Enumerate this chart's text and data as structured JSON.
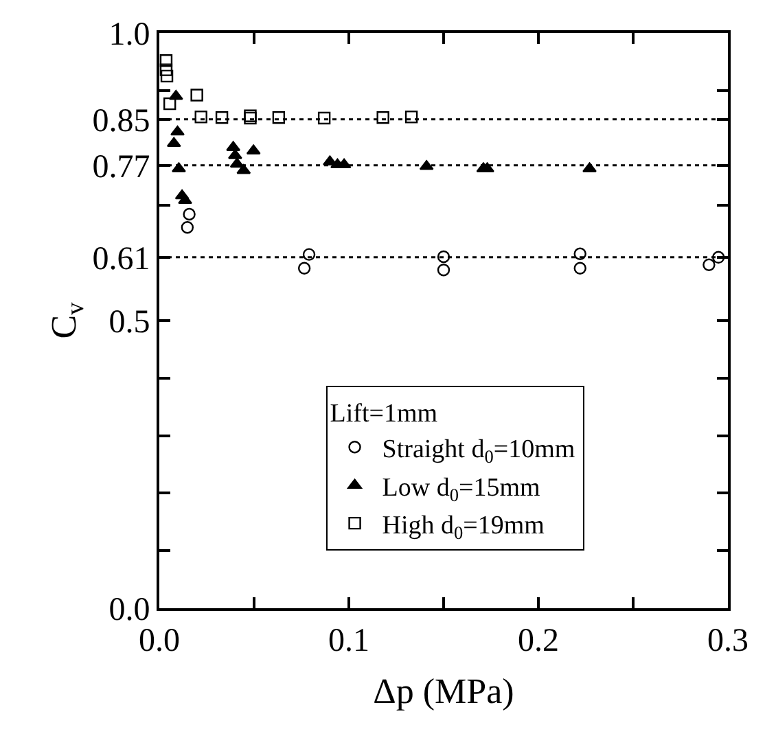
{
  "chart_data": {
    "type": "scatter",
    "xlabel": "Δp (MPa)",
    "ylabel": "C$_{v}$",
    "legend_title": "Lift=1mm",
    "legend": "bottom",
    "grid": false,
    "xlim": [
      0,
      0.3
    ],
    "xticks": [
      {
        "value": 0,
        "label": "0.0"
      },
      {
        "value": 0.05,
        "label": null
      },
      0.1,
      {
        "value": 0.15,
        "label": null
      },
      0.2,
      {
        "value": 0.25,
        "label": null
      },
      0.3
    ],
    "ylim": [
      0,
      1.0
    ],
    "yticks": [
      {
        "value": 0,
        "label": "0.0"
      },
      {
        "value": 0.1,
        "label": null
      },
      {
        "value": 0.2,
        "label": null
      },
      {
        "value": 0.3,
        "label": null
      },
      {
        "value": 0.4,
        "label": null
      },
      0.5,
      0.61,
      {
        "value": 0.7,
        "label": null
      },
      0.77,
      0.85,
      {
        "value": 0.9,
        "label": null
      },
      {
        "value": 1,
        "label": "1.0"
      }
    ],
    "ref_lines": [
      {
        "axis": "y",
        "value": 0.85,
        "line_style": "dotted",
        "color": "#000000"
      },
      {
        "axis": "y",
        "value": 0.77,
        "line_style": "dotted",
        "color": "#000000"
      },
      {
        "axis": "y",
        "value": 0.61,
        "line_style": "dotted",
        "color": "#000000"
      }
    ],
    "series": [
      {
        "name": "Straight d$_{0}$=10mm",
        "color": "#000000",
        "marker": "circle",
        "x": [
          0.0158,
          0.0148,
          0.079,
          0.0765,
          0.15,
          0.15,
          0.222,
          0.222,
          0.29,
          0.295
        ],
        "values": [
          0.685,
          0.662,
          0.615,
          0.591,
          0.611,
          0.588,
          0.616,
          0.591,
          0.597,
          0.61
        ]
      },
      {
        "name": "Low d$_{0}$=15mm",
        "color": "#000000",
        "marker": "triangle",
        "x": [
          0.0088,
          0.0096,
          0.0077,
          0.0103,
          0.012,
          0.0136,
          0.039,
          0.04,
          0.041,
          0.0445,
          0.0497,
          0.09,
          0.094,
          0.0975,
          0.141,
          0.171,
          0.173,
          0.227
        ],
        "values": [
          0.89,
          0.828,
          0.808,
          0.764,
          0.717,
          0.709,
          0.801,
          0.787,
          0.772,
          0.761,
          0.795,
          0.776,
          0.771,
          0.771,
          0.768,
          0.764,
          0.764,
          0.764
        ]
      },
      {
        "name": "High d$_{0}$=19mm",
        "color": "#000000",
        "marker": "square",
        "x": [
          0.0036,
          0.0036,
          0.004,
          0.0055,
          0.0198,
          0.022,
          0.033,
          0.048,
          0.048,
          0.063,
          0.087,
          0.118,
          0.133
        ],
        "values": [
          0.952,
          0.936,
          0.925,
          0.877,
          0.892,
          0.854,
          0.853,
          0.856,
          0.852,
          0.853,
          0.852,
          0.853,
          0.854
        ]
      }
    ]
  }
}
